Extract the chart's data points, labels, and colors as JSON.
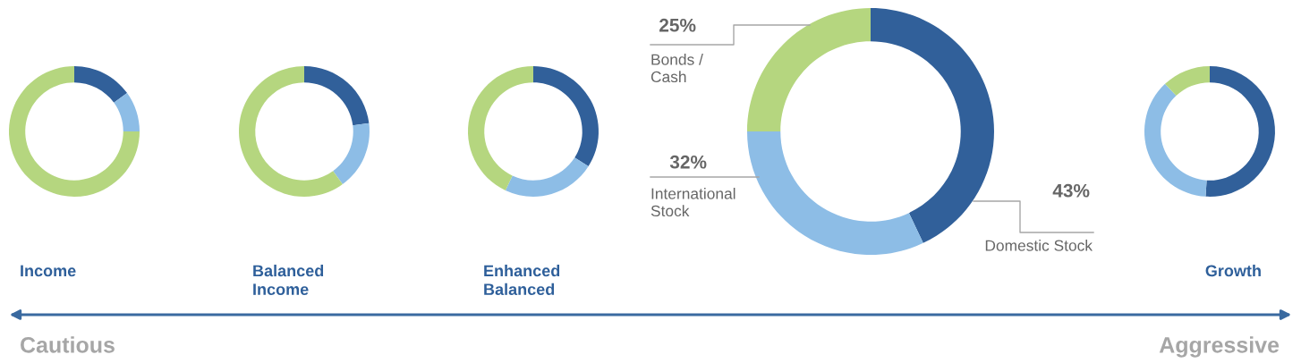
{
  "chart_data": [
    {
      "type": "donut",
      "title": "Income",
      "categories": [
        null,
        null,
        null
      ],
      "values": [
        15,
        10,
        75
      ],
      "colors": [
        "#31609a",
        "#8dbde6",
        "#b5d67f"
      ]
    },
    {
      "type": "donut",
      "title": "Balanced\nIncome",
      "categories": [
        null,
        null,
        null
      ],
      "values": [
        23,
        17,
        60
      ],
      "colors": [
        "#31609a",
        "#8dbde6",
        "#b5d67f"
      ]
    },
    {
      "type": "donut",
      "title": "Enhanced\nBalanced",
      "categories": [
        null,
        null,
        null
      ],
      "values": [
        34,
        23,
        43
      ],
      "colors": [
        "#31609a",
        "#8dbde6",
        "#b5d67f"
      ]
    },
    {
      "type": "donut",
      "categories": [
        "Domestic Stock",
        "International\nStock",
        "Bonds /\nCash"
      ],
      "values": [
        43,
        32,
        25
      ],
      "value_labels": [
        "43%",
        "32%",
        "25%"
      ],
      "colors": [
        "#31609a",
        "#8dbde6",
        "#b5d67f"
      ]
    },
    {
      "type": "donut",
      "title": "Growth",
      "categories": [
        null,
        null,
        null
      ],
      "values": [
        51,
        37,
        12
      ],
      "colors": [
        "#31609a",
        "#8dbde6",
        "#b5d67f"
      ]
    },
    {
      "type": "other",
      "annotations": [
        "Cautious",
        "Aggressive"
      ]
    }
  ]
}
